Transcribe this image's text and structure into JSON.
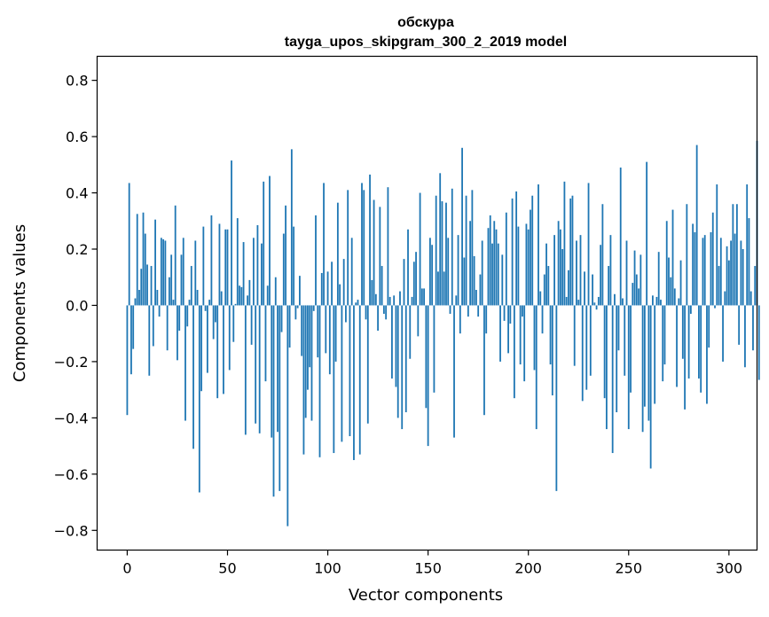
{
  "chart_data": {
    "type": "bar",
    "title": "обскура",
    "subtitle": "tayga_upos_skipgram_300_2_2019 model",
    "xlabel": "Vector components",
    "ylabel": "Components values",
    "xlim": [
      -15,
      314
    ],
    "ylim": [
      -0.87,
      0.8855
    ],
    "xticks": [
      0,
      50,
      100,
      150,
      200,
      250,
      300
    ],
    "xtick_labels": [
      "0",
      "50",
      "100",
      "150",
      "200",
      "250",
      "300"
    ],
    "yticks": [
      0.8,
      0.6,
      0.4,
      0.2,
      0.0,
      -0.2,
      -0.4,
      -0.6,
      -0.8
    ],
    "ytick_labels": [
      "0.8",
      "0.6",
      "0.4",
      "0.2",
      "0.0",
      "−0.2",
      "−0.4",
      "−0.6",
      "−0.8"
    ],
    "grid": false,
    "bar_color": "#1f77b4",
    "values": [
      -0.39,
      0.435,
      -0.245,
      -0.155,
      0.025,
      0.325,
      0.055,
      0.13,
      0.33,
      0.255,
      0.145,
      -0.25,
      0.14,
      -0.145,
      0.305,
      0.055,
      -0.04,
      0.24,
      0.235,
      0.23,
      -0.16,
      0.1,
      0.18,
      0.02,
      0.355,
      -0.195,
      -0.09,
      0.18,
      0.24,
      -0.41,
      -0.075,
      0.02,
      0.14,
      -0.51,
      0.23,
      0.055,
      -0.665,
      -0.305,
      0.28,
      -0.02,
      -0.24,
      0.02,
      0.32,
      -0.12,
      -0.06,
      -0.33,
      0.29,
      0.05,
      -0.315,
      0.27,
      0.27,
      -0.23,
      0.515,
      -0.13,
      0.005,
      0.31,
      0.07,
      0.065,
      0.225,
      -0.46,
      0.035,
      0.09,
      -0.14,
      0.24,
      -0.42,
      0.285,
      -0.455,
      0.22,
      0.44,
      -0.27,
      0.07,
      0.46,
      -0.47,
      -0.68,
      0.1,
      -0.45,
      -0.66,
      -0.095,
      0.255,
      0.355,
      -0.785,
      -0.15,
      0.555,
      0.28,
      -0.05,
      -0.01,
      0.105,
      -0.18,
      -0.53,
      -0.4,
      -0.3,
      -0.22,
      -0.41,
      -0.02,
      0.32,
      -0.185,
      -0.54,
      0.115,
      0.435,
      -0.17,
      0.12,
      -0.245,
      0.155,
      -0.525,
      -0.2,
      0.365,
      0.075,
      -0.485,
      0.165,
      -0.06,
      0.41,
      -0.465,
      0.24,
      -0.55,
      0.01,
      0.02,
      -0.53,
      0.435,
      0.41,
      -0.05,
      -0.42,
      0.465,
      0.09,
      0.375,
      0.04,
      -0.09,
      0.35,
      0.14,
      -0.03,
      -0.05,
      0.42,
      0.03,
      -0.26,
      0.035,
      -0.29,
      -0.4,
      0.05,
      -0.44,
      0.165,
      -0.38,
      0.27,
      -0.19,
      0.03,
      0.155,
      0.19,
      -0.11,
      0.4,
      0.06,
      0.06,
      -0.365,
      -0.5,
      0.24,
      0.215,
      -0.31,
      0.39,
      0.12,
      0.47,
      0.37,
      0.12,
      0.365,
      0.24,
      -0.03,
      0.415,
      -0.47,
      0.035,
      0.25,
      -0.1,
      0.56,
      0.17,
      0.39,
      -0.04,
      0.3,
      0.41,
      0.175,
      0.055,
      -0.04,
      0.11,
      0.23,
      -0.39,
      -0.1,
      0.275,
      0.32,
      0.22,
      0.3,
      0.27,
      0.22,
      -0.2,
      0.18,
      -0.055,
      0.33,
      -0.17,
      -0.065,
      0.38,
      -0.33,
      0.405,
      0.28,
      -0.21,
      -0.04,
      -0.27,
      0.29,
      0.27,
      0.34,
      0.39,
      -0.23,
      -0.44,
      0.43,
      0.05,
      -0.1,
      0.11,
      0.22,
      0.14,
      -0.21,
      -0.32,
      0.25,
      -0.66,
      0.3,
      0.27,
      0.2,
      0.44,
      0.03,
      0.125,
      0.38,
      0.39,
      -0.215,
      0.23,
      0.02,
      0.25,
      -0.34,
      0.12,
      -0.3,
      0.435,
      -0.25,
      0.11,
      0.01,
      -0.015,
      0.03,
      0.215,
      0.36,
      -0.33,
      -0.44,
      0.14,
      0.25,
      -0.525,
      0.04,
      -0.38,
      -0.16,
      0.49,
      0.025,
      -0.25,
      0.23,
      -0.44,
      -0.31,
      0.08,
      0.195,
      0.11,
      0.06,
      0.18,
      -0.45,
      -0.36,
      0.51,
      -0.41,
      -0.58,
      0.035,
      -0.35,
      0.03,
      0.19,
      0.02,
      -0.27,
      -0.21,
      0.3,
      0.17,
      0.1,
      0.34,
      0.06,
      -0.29,
      0.025,
      0.16,
      -0.19,
      -0.37,
      0.36,
      -0.26,
      -0.03,
      0.29,
      0.26,
      0.57,
      -0.26,
      -0.31,
      0.24,
      0.25,
      -0.35,
      -0.15,
      0.26,
      0.33,
      -0.01,
      0.43,
      0.14,
      0.24,
      -0.2,
      0.05,
      0.21,
      0.16,
      0.23,
      0.36,
      0.255,
      0.36,
      -0.14,
      0.23,
      0.2,
      -0.22,
      0.43,
      0.31,
      0.05,
      -0.16,
      0.14,
      0.585,
      -0.265
    ]
  }
}
